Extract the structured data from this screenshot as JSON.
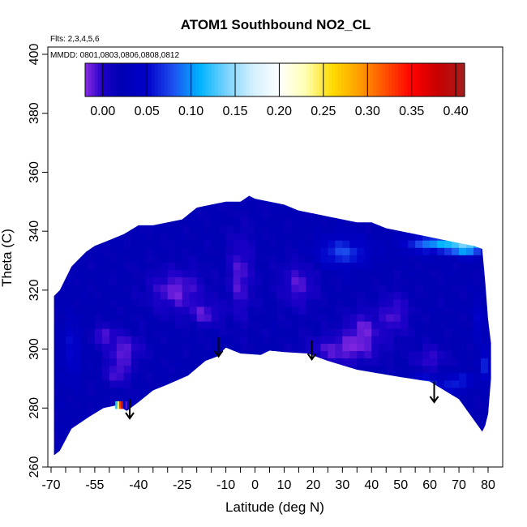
{
  "chart_data": {
    "type": "heatmap",
    "title": "ATOM1 Southbound NO2_CL",
    "annotations": [
      "Flts: 2,3,4,5,6",
      "MMDD: 0801,0803,0806,0808,0812"
    ],
    "xlabel": "Latitude (deg N)",
    "ylabel": "Theta (C)",
    "xlim": [
      -70,
      85
    ],
    "ylim": [
      260,
      405
    ],
    "x_ticks": [
      -70,
      -55,
      -40,
      -25,
      -10,
      0,
      10,
      20,
      30,
      40,
      50,
      60,
      70,
      80
    ],
    "x_tick_labels": [
      "-70",
      "-55",
      "-40",
      "-25",
      "-10",
      "0",
      "10",
      "20",
      "30",
      "40",
      "50",
      "60",
      "70",
      "80"
    ],
    "x_minor_ticks": [
      -65,
      -60,
      -50,
      -45,
      -35,
      -30,
      -20,
      -15,
      -5,
      5,
      15,
      25,
      35,
      45,
      55,
      65,
      75
    ],
    "y_ticks": [
      260,
      280,
      300,
      320,
      340,
      360,
      380,
      400
    ],
    "y_tick_labels": [
      "260",
      "280",
      "300",
      "320",
      "340",
      "360",
      "380",
      "400"
    ],
    "colorbar": {
      "range": [
        -0.02,
        0.41
      ],
      "ticks": [
        0.0,
        0.05,
        0.1,
        0.15,
        0.2,
        0.25,
        0.3,
        0.35,
        0.4
      ],
      "tick_labels": [
        "0.00",
        "0.05",
        "0.10",
        "0.15",
        "0.20",
        "0.25",
        "0.30",
        "0.35",
        "0.40"
      ],
      "stops": [
        [
          -0.02,
          "#8a2be2"
        ],
        [
          0.0,
          "#1e00c8"
        ],
        [
          0.02,
          "#0000b4"
        ],
        [
          0.05,
          "#0000c8"
        ],
        [
          0.08,
          "#1e50f0"
        ],
        [
          0.11,
          "#00b4ff"
        ],
        [
          0.14,
          "#78d2ff"
        ],
        [
          0.17,
          "#d2f0ff"
        ],
        [
          0.2,
          "#ffffff"
        ],
        [
          0.23,
          "#ffffb4"
        ],
        [
          0.26,
          "#ffdc00"
        ],
        [
          0.29,
          "#ffa000"
        ],
        [
          0.32,
          "#ff5000"
        ],
        [
          0.35,
          "#ff0000"
        ],
        [
          0.38,
          "#c80000"
        ],
        [
          0.41,
          "#a51e1e"
        ]
      ]
    },
    "field": {
      "upper_boundary": [
        [
          -69,
          318
        ],
        [
          -67,
          320
        ],
        [
          -65,
          324
        ],
        [
          -63,
          328
        ],
        [
          -61,
          330
        ],
        [
          -58,
          333
        ],
        [
          -55,
          335
        ],
        [
          -50,
          337
        ],
        [
          -45,
          339
        ],
        [
          -40,
          342
        ],
        [
          -35,
          342
        ],
        [
          -30,
          343
        ],
        [
          -25,
          344
        ],
        [
          -20,
          348
        ],
        [
          -15,
          349
        ],
        [
          -10,
          350
        ],
        [
          -5,
          350
        ],
        [
          -2,
          352
        ],
        [
          0,
          351
        ],
        [
          5,
          350
        ],
        [
          10,
          349
        ],
        [
          15,
          347
        ],
        [
          20,
          346
        ],
        [
          25,
          345
        ],
        [
          30,
          344
        ],
        [
          35,
          343
        ],
        [
          40,
          343
        ],
        [
          45,
          341
        ],
        [
          50,
          340
        ],
        [
          55,
          339
        ],
        [
          60,
          338
        ],
        [
          65,
          337
        ],
        [
          70,
          336
        ],
        [
          75,
          335
        ],
        [
          78,
          334
        ],
        [
          79,
          323
        ],
        [
          80,
          310
        ],
        [
          81,
          302
        ]
      ],
      "lower_boundary": [
        [
          81,
          290
        ],
        [
          80,
          278
        ],
        [
          79,
          274
        ],
        [
          78,
          272
        ],
        [
          70,
          283
        ],
        [
          60,
          289
        ],
        [
          50,
          290.5
        ],
        [
          35,
          293
        ],
        [
          25,
          296
        ],
        [
          18,
          298.5
        ],
        [
          10,
          299
        ],
        [
          5,
          299.5
        ],
        [
          2,
          298
        ],
        [
          -5,
          298.5
        ],
        [
          -10,
          300.5
        ],
        [
          -13,
          297.5
        ],
        [
          -17,
          296
        ],
        [
          -23,
          291
        ],
        [
          -30,
          288
        ],
        [
          -35,
          286
        ],
        [
          -40,
          282
        ],
        [
          -44,
          279
        ],
        [
          -47,
          281
        ],
        [
          -52,
          280
        ],
        [
          -57,
          277
        ],
        [
          -63,
          273
        ],
        [
          -67,
          265.5
        ],
        [
          -69,
          264
        ]
      ],
      "background_value": 0.02,
      "features": [
        {
          "x": -45,
          "y": 300,
          "rx": 6,
          "ry": 5,
          "value": -0.012
        },
        {
          "x": -47,
          "y": 292,
          "rx": 4,
          "ry": 4,
          "value": -0.01
        },
        {
          "x": -52,
          "y": 305,
          "rx": 4,
          "ry": 3,
          "value": -0.008
        },
        {
          "x": -27,
          "y": 320,
          "rx": 9,
          "ry": 7,
          "value": -0.014
        },
        {
          "x": -17,
          "y": 312,
          "rx": 5,
          "ry": 4,
          "value": -0.008
        },
        {
          "x": -5,
          "y": 325,
          "rx": 4,
          "ry": 14,
          "value": -0.01
        },
        {
          "x": 15,
          "y": 322,
          "rx": 6,
          "ry": 8,
          "value": -0.008
        },
        {
          "x": 30,
          "y": 300,
          "rx": 12,
          "ry": 5,
          "value": -0.012
        },
        {
          "x": 37,
          "y": 307,
          "rx": 6,
          "ry": 6,
          "value": -0.01
        },
        {
          "x": 48,
          "y": 312,
          "rx": 5,
          "ry": 7,
          "value": -0.008
        },
        {
          "x": 60,
          "y": 297,
          "rx": 5,
          "ry": 4,
          "value": -0.005
        },
        {
          "x": 30,
          "y": 333,
          "rx": 9,
          "ry": 5,
          "value": 0.075
        },
        {
          "x": 62,
          "y": 336,
          "rx": 10,
          "ry": 3,
          "value": 0.1
        },
        {
          "x": 73,
          "y": 335,
          "rx": 6,
          "ry": 3,
          "value": 0.12
        },
        {
          "x": 58,
          "y": 289,
          "rx": 5,
          "ry": 2,
          "value": 0.085
        },
        {
          "x": 68,
          "y": 287,
          "rx": 4,
          "ry": 2,
          "value": 0.065
        },
        {
          "x": 71,
          "y": 290,
          "rx": 6,
          "ry": 2,
          "value": 0.055
        },
        {
          "x": -63,
          "y": 300,
          "rx": 3,
          "ry": 10,
          "value": 0.055
        },
        {
          "x": 77,
          "y": 310,
          "rx": 2,
          "ry": 8,
          "value": 0.05
        },
        {
          "x": 79,
          "y": 295,
          "rx": 2,
          "ry": 5,
          "value": 0.06
        }
      ],
      "hot_cells": [
        {
          "x": -48.0,
          "y": 281,
          "value": 0.12
        },
        {
          "x": -47.3,
          "y": 281,
          "value": 0.25
        },
        {
          "x": -46.6,
          "y": 281,
          "value": 0.33
        },
        {
          "x": -45.9,
          "y": 281,
          "value": 0.4
        },
        {
          "x": -45.2,
          "y": 281,
          "value": 0.02
        },
        {
          "x": -44.5,
          "y": 281,
          "value": -0.01
        }
      ]
    },
    "arrows": [
      {
        "x": -43,
        "y_from": 283,
        "y_to": 276.5
      },
      {
        "x": -12.5,
        "y_from": 304,
        "y_to": 297.5
      },
      {
        "x": 19.5,
        "y_from": 303,
        "y_to": 296.5
      },
      {
        "x": 61.5,
        "y_from": 289,
        "y_to": 282
      }
    ]
  }
}
